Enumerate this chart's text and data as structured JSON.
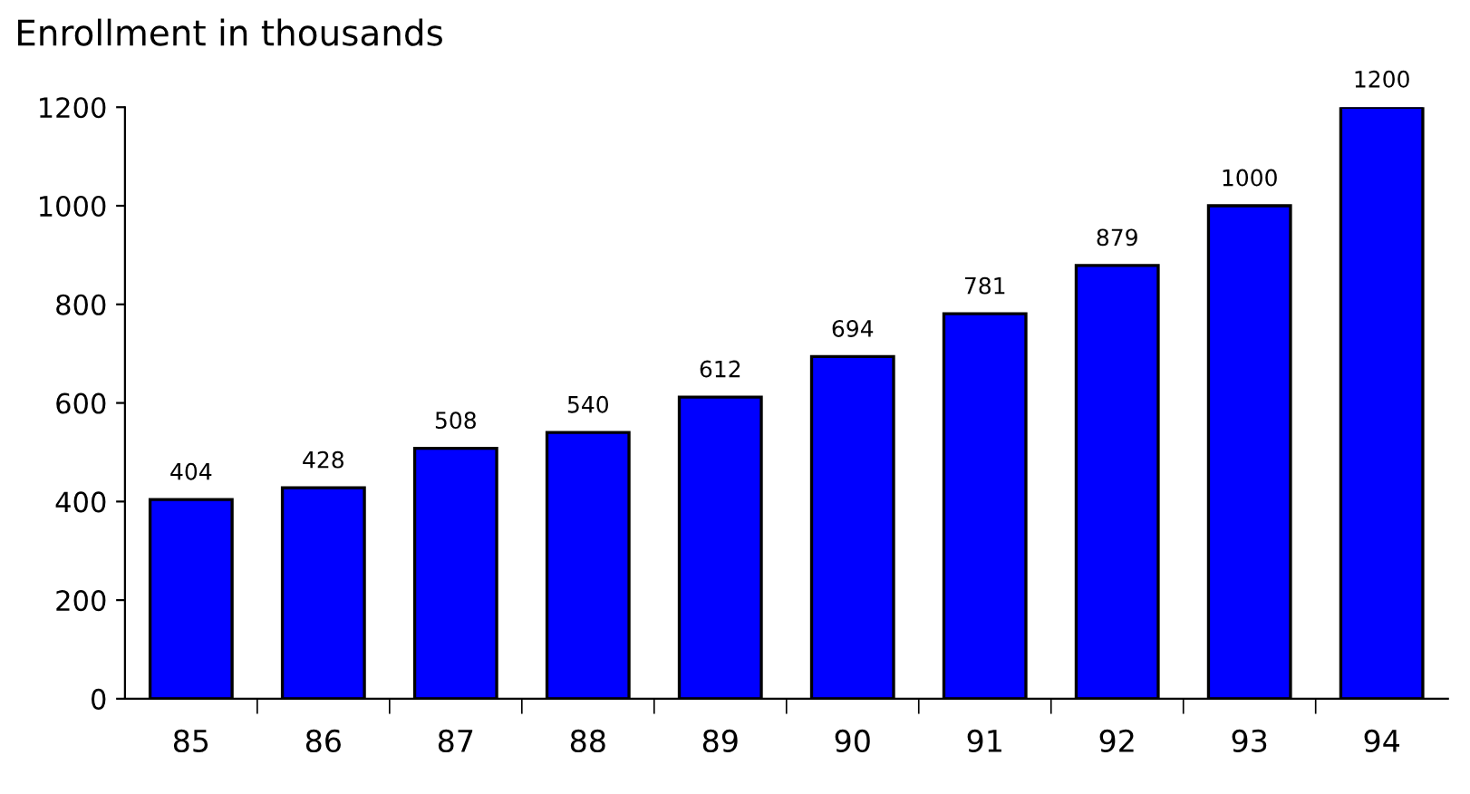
{
  "chart_data": {
    "type": "bar",
    "title": "Enrollment in thousands",
    "categories": [
      "85",
      "86",
      "87",
      "88",
      "89",
      "90",
      "91",
      "92",
      "93",
      "94"
    ],
    "values": [
      404,
      428,
      508,
      540,
      612,
      694,
      781,
      879,
      1000,
      1200
    ],
    "color": "#0000ff",
    "ylim": [
      0,
      1200
    ],
    "yticks": [
      0,
      200,
      400,
      600,
      800,
      1000,
      1200
    ],
    "data_labels": true
  }
}
